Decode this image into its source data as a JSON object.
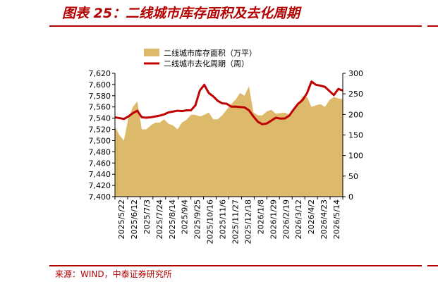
{
  "header": {
    "title": "图表 25：二线城市库存面积及去化周期"
  },
  "footer": {
    "source": "来源：WIND，中泰证券研究所"
  },
  "colors": {
    "area": "#ddb96b",
    "line": "#c00000",
    "brand": "#b30000"
  },
  "chart_data": {
    "type": "area",
    "categories": [
      "2025/5/22",
      "2025/6/12",
      "2025/7/3",
      "2025/7/24",
      "2025/8/14",
      "2025/9/4",
      "2025/9/25",
      "2025/10/16",
      "2025/11/6",
      "2025/11/27",
      "2025/12/18",
      "2026/1/8",
      "2026/1/29",
      "2026/2/19",
      "2026/3/12",
      "2026/4/2",
      "2026/4/23",
      "2026/5/14"
    ],
    "series": [
      {
        "name": "二线城市库存面积（万平）",
        "type": "area",
        "axis": "left",
        "x": [
          0,
          1,
          2,
          3,
          4,
          5,
          6,
          7,
          8,
          9,
          10,
          11,
          12,
          13,
          14,
          15,
          16,
          17,
          18,
          19,
          20,
          21,
          22,
          23,
          24,
          25,
          26,
          27,
          28,
          29,
          30,
          31,
          32,
          33,
          34,
          35,
          36,
          37,
          38,
          39,
          40,
          41,
          42,
          43,
          44,
          45,
          46,
          47,
          48,
          49,
          50,
          51
        ],
        "values": [
          7525,
          7510,
          7500,
          7540,
          7560,
          7570,
          7520,
          7520,
          7527,
          7532,
          7532,
          7538,
          7530,
          7527,
          7520,
          7532,
          7537,
          7546,
          7546,
          7543,
          7546,
          7550,
          7538,
          7538,
          7545,
          7555,
          7565,
          7573,
          7585,
          7580,
          7597,
          7550,
          7545,
          7545,
          7552,
          7555,
          7548,
          7549,
          7550,
          7546,
          7553,
          7565,
          7579,
          7578,
          7560,
          7563,
          7565,
          7560,
          7572,
          7578,
          7575,
          7574
        ]
      },
      {
        "name": "二线城市去化周期（周）",
        "type": "line",
        "axis": "right",
        "x": [
          0,
          1,
          2,
          3,
          4,
          5,
          6,
          7,
          8,
          9,
          10,
          11,
          12,
          13,
          14,
          15,
          16,
          17,
          18,
          19,
          20,
          21,
          22,
          23,
          24,
          25,
          26,
          27,
          28,
          29,
          30,
          31,
          32,
          33,
          34,
          35,
          36,
          37,
          38,
          39,
          40,
          41,
          42,
          43,
          44,
          45,
          46,
          47,
          48,
          49,
          50,
          51
        ],
        "values": [
          193,
          191,
          189,
          195,
          203,
          209,
          193,
          192,
          193,
          195,
          197,
          200,
          205,
          207,
          209,
          208,
          210,
          210,
          222,
          258,
          272,
          252,
          244,
          233,
          227,
          226,
          219,
          219,
          218,
          217,
          210,
          195,
          182,
          176,
          178,
          185,
          192,
          190,
          190,
          197,
          212,
          226,
          235,
          252,
          280,
          272,
          270,
          267,
          257,
          247,
          262,
          258
        ]
      }
    ],
    "y_left": {
      "min": 7400,
      "max": 7620,
      "ticks": [
        "7,400",
        "7,420",
        "7,440",
        "7,460",
        "7,480",
        "7,500",
        "7,520",
        "7,540",
        "7,560",
        "7,580",
        "7,600",
        "7,620"
      ]
    },
    "y_right": {
      "min": 0,
      "max": 300,
      "ticks": [
        "0",
        "50",
        "100",
        "150",
        "200",
        "250",
        "300"
      ]
    },
    "legend_position": "top-center",
    "grid": false
  }
}
